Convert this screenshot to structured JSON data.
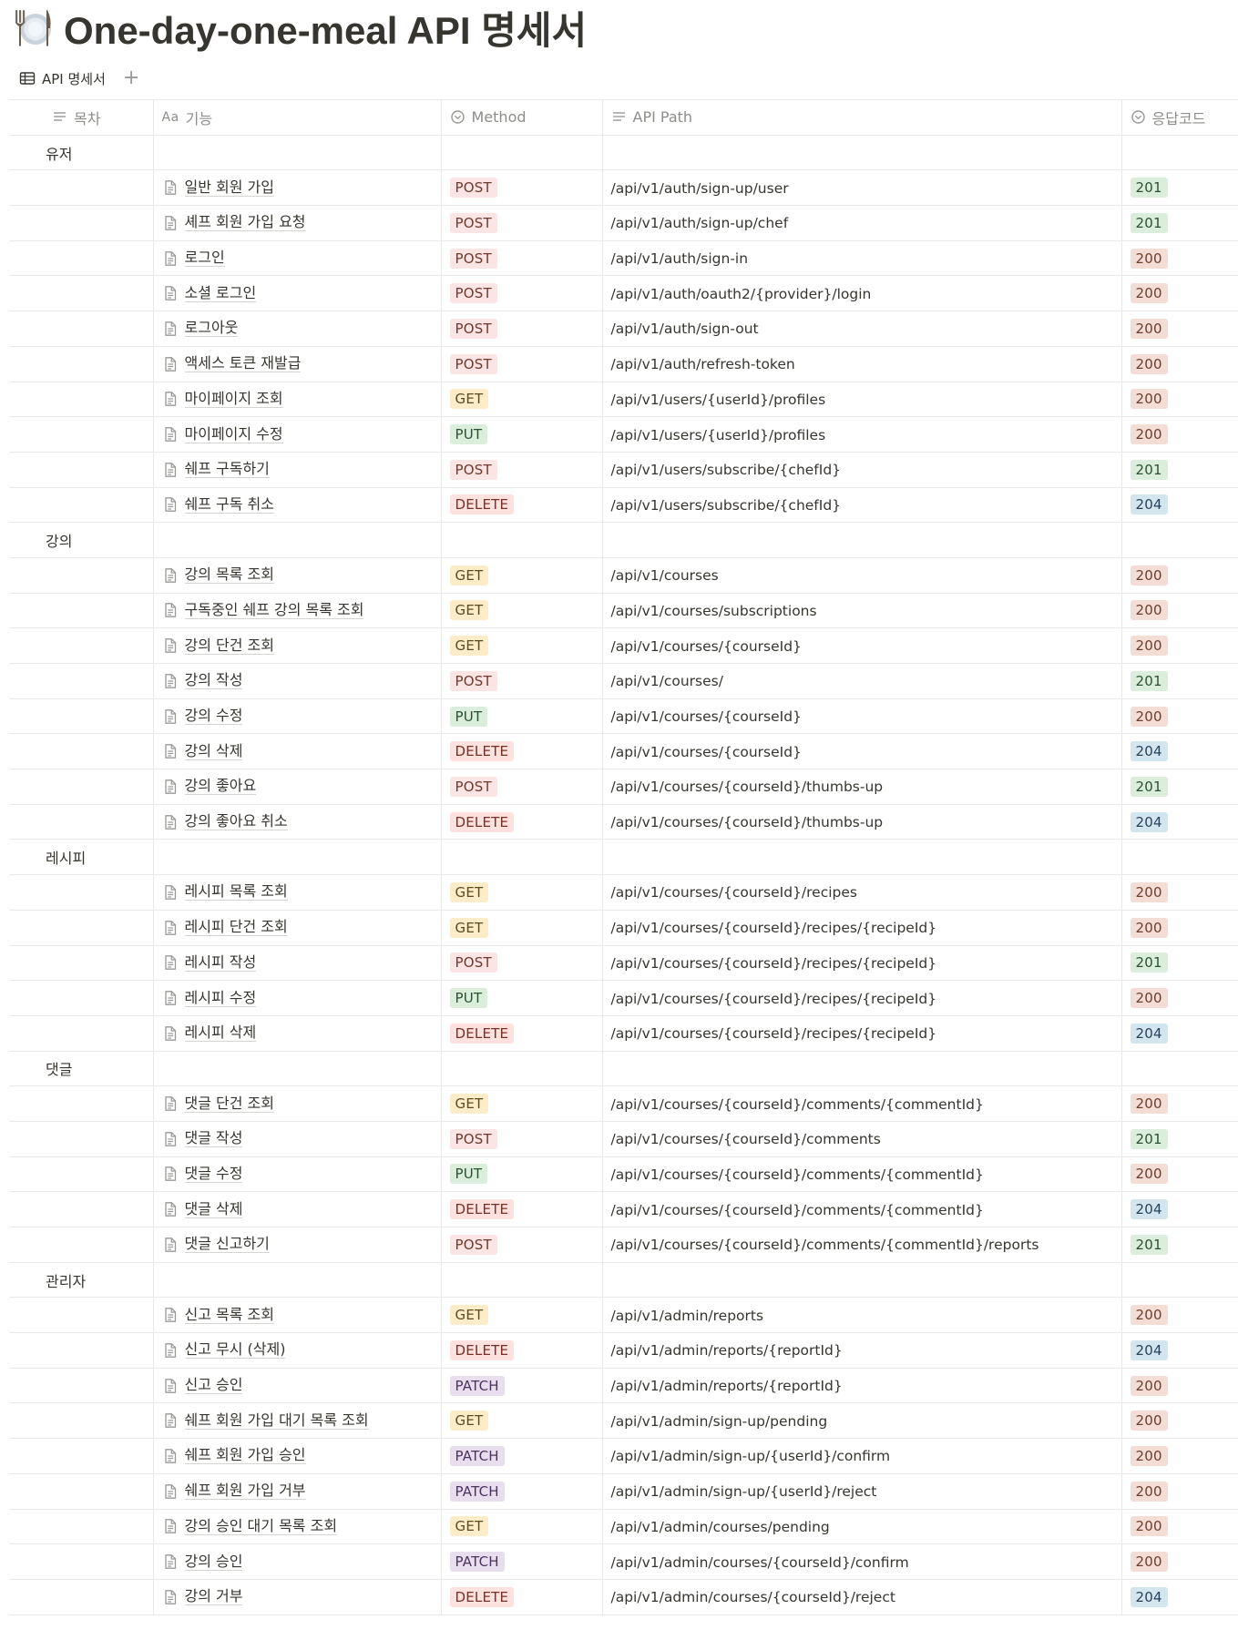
{
  "page": {
    "icon": "fork-knife-plate-icon",
    "title": "One-day-one-meal API 명세서"
  },
  "views": {
    "tabs": [
      {
        "label": "API 명세서",
        "icon": "table-icon"
      }
    ],
    "add_label": "+"
  },
  "columns": {
    "toc": "목차",
    "name_prefix": "Aa",
    "name": "기능",
    "method": "Method",
    "path": "API Path",
    "code": "응답코드"
  },
  "colors": {
    "POST": "#fbe4e4",
    "GET": "#fdecc8",
    "PUT": "#dbeddb",
    "DELETE": "#ffe2dd",
    "PATCH": "#e8deee",
    "201": "#dbeddb",
    "200": "#f4ddd5",
    "204": "#d3e5ef"
  },
  "groups": [
    {
      "name": "유저",
      "rows": [
        {
          "name": "일반 회원 가입",
          "method": "POST",
          "path": "/api/v1/auth/sign-up/user",
          "code": "201"
        },
        {
          "name": "셰프 회원 가입 요청",
          "method": "POST",
          "path": "/api/v1/auth/sign-up/chef",
          "code": "201"
        },
        {
          "name": "로그인",
          "method": "POST",
          "path": "/api/v1/auth/sign-in",
          "code": "200"
        },
        {
          "name": "소셜 로그인",
          "method": "POST",
          "path": "/api/v1/auth/oauth2/{provider}/login",
          "code": "200"
        },
        {
          "name": "로그아웃",
          "method": "POST",
          "path": "/api/v1/auth/sign-out",
          "code": "200"
        },
        {
          "name": "액세스 토큰 재발급",
          "method": "POST",
          "path": "/api/v1/auth/refresh-token",
          "code": "200"
        },
        {
          "name": "마이페이지 조회",
          "method": "GET",
          "path": "/api/v1/users/{userId}/profiles",
          "code": "200"
        },
        {
          "name": "마이페이지 수정",
          "method": "PUT",
          "path": "/api/v1/users/{userId}/profiles",
          "code": "200"
        },
        {
          "name": "쉐프 구독하기",
          "method": "POST",
          "path": "/api/v1/users/subscribe/{chefId}",
          "code": "201"
        },
        {
          "name": "쉐프 구독 취소",
          "method": "DELETE",
          "path": "/api/v1/users/subscribe/{chefId}",
          "code": "204"
        }
      ]
    },
    {
      "name": "강의",
      "rows": [
        {
          "name": "강의 목록 조회",
          "method": "GET",
          "path": "/api/v1/courses",
          "code": "200"
        },
        {
          "name": "구독중인 쉐프 강의 목록 조회",
          "method": "GET",
          "path": "/api/v1/courses/subscriptions",
          "code": "200"
        },
        {
          "name": "강의 단건 조회",
          "method": "GET",
          "path": "/api/v1/courses/{courseId}",
          "code": "200"
        },
        {
          "name": "강의 작성",
          "method": "POST",
          "path": "/api/v1/courses/",
          "code": "201"
        },
        {
          "name": "강의 수정",
          "method": "PUT",
          "path": "/api/v1/courses/{courseId}",
          "code": "200"
        },
        {
          "name": "강의 삭제",
          "method": "DELETE",
          "path": "/api/v1/courses/{courseId}",
          "code": "204"
        },
        {
          "name": "강의 좋아요",
          "method": "POST",
          "path": "/api/v1/courses/{courseId}/thumbs-up",
          "code": "201"
        },
        {
          "name": "강의 좋아요 취소",
          "method": "DELETE",
          "path": "/api/v1/courses/{courseId}/thumbs-up",
          "code": "204"
        }
      ]
    },
    {
      "name": "레시피",
      "rows": [
        {
          "name": "레시피 목록 조회",
          "method": "GET",
          "path": "/api/v1/courses/{courseId}/recipes",
          "code": "200"
        },
        {
          "name": "레시피 단건 조회",
          "method": "GET",
          "path": "/api/v1/courses/{courseId}/recipes/{recipeId}",
          "code": "200"
        },
        {
          "name": "레시피 작성",
          "method": "POST",
          "path": "/api/v1/courses/{courseId}/recipes/{recipeId}",
          "code": "201"
        },
        {
          "name": "레시피 수정",
          "method": "PUT",
          "path": "/api/v1/courses/{courseId}/recipes/{recipeId}",
          "code": "200"
        },
        {
          "name": "레시피 삭제",
          "method": "DELETE",
          "path": "/api/v1/courses/{courseId}/recipes/{recipeId}",
          "code": "204"
        }
      ]
    },
    {
      "name": "댓글",
      "rows": [
        {
          "name": "댓글 단건 조회",
          "method": "GET",
          "path": "/api/v1/courses/{courseId}/comments/{commentId}",
          "code": "200"
        },
        {
          "name": "댓글 작성",
          "method": "POST",
          "path": "/api/v1/courses/{courseId}/comments",
          "code": "201"
        },
        {
          "name": "댓글 수정",
          "method": "PUT",
          "path": "/api/v1/courses/{courseId}/comments/{commentId}",
          "code": "200"
        },
        {
          "name": "댓글 삭제",
          "method": "DELETE",
          "path": "/api/v1/courses/{courseId}/comments/{commentId}",
          "code": "204"
        },
        {
          "name": "댓글 신고하기",
          "method": "POST",
          "path": "/api/v1/courses/{courseId}/comments/{commentId}/reports",
          "code": "201"
        }
      ]
    },
    {
      "name": "관리자",
      "rows": [
        {
          "name": "신고 목록 조회",
          "method": "GET",
          "path": "/api/v1/admin/reports",
          "code": "200"
        },
        {
          "name": "신고 무시 (삭제)",
          "method": "DELETE",
          "path": "/api/v1/admin/reports/{reportId}",
          "code": "204"
        },
        {
          "name": "신고 승인",
          "method": "PATCH",
          "path": "/api/v1/admin/reports/{reportId}",
          "code": "200"
        },
        {
          "name": "쉐프 회원 가입 대기 목록 조회",
          "method": "GET",
          "path": "/api/v1/admin/sign-up/pending",
          "code": "200"
        },
        {
          "name": "쉐프 회원 가입 승인",
          "method": "PATCH",
          "path": "/api/v1/admin/sign-up/{userId}/confirm",
          "code": "200"
        },
        {
          "name": "쉐프 회원 가입 거부",
          "method": "PATCH",
          "path": "/api/v1/admin/sign-up/{userId}/reject",
          "code": "200"
        },
        {
          "name": "강의 승인 대기 목록 조회",
          "method": "GET",
          "path": "/api/v1/admin/courses/pending",
          "code": "200"
        },
        {
          "name": "강의 승인",
          "method": "PATCH",
          "path": "/api/v1/admin/courses/{courseId}/confirm",
          "code": "200"
        },
        {
          "name": "강의 거부",
          "method": "DELETE",
          "path": "/api/v1/admin/courses/{courseId}/reject",
          "code": "204"
        }
      ]
    }
  ]
}
